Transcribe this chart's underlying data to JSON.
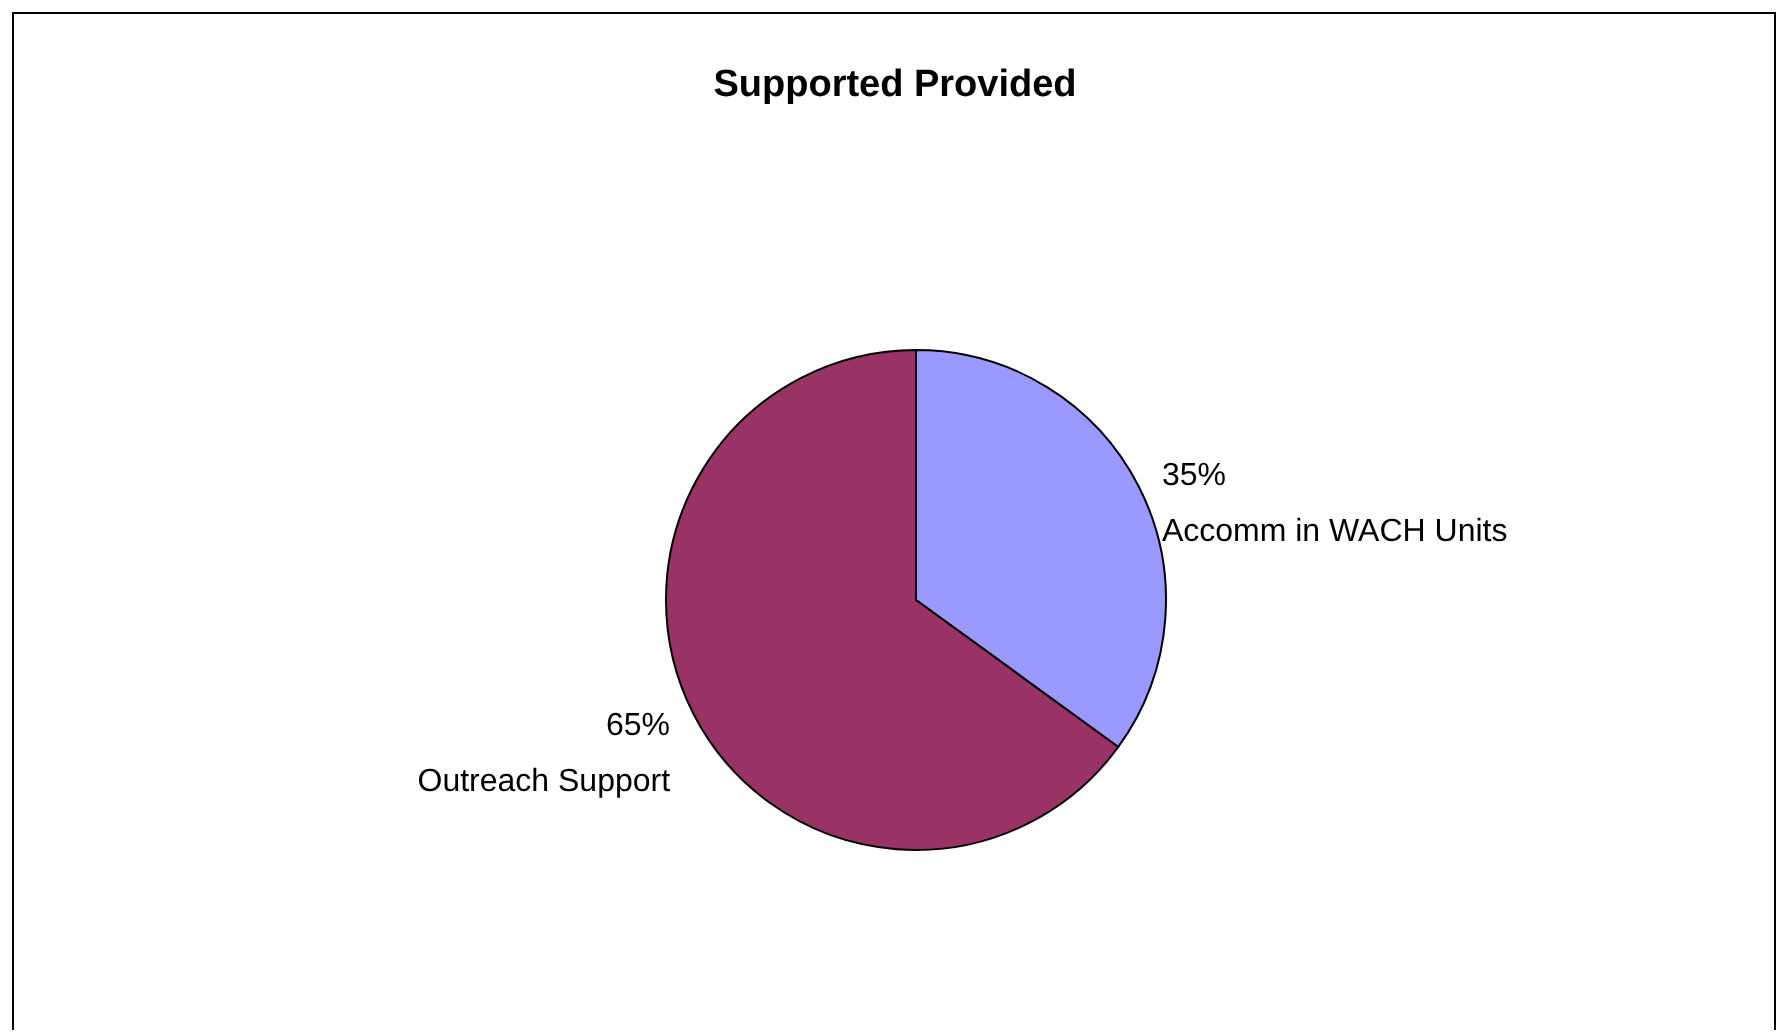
{
  "chart_data": {
    "type": "pie",
    "title": "Supported Provided",
    "categories": [
      "Accomm in WACH Units",
      "Outreach Support"
    ],
    "values": [
      35,
      65
    ],
    "value_labels": [
      "35%",
      "65%"
    ],
    "colors": [
      "#9999ff",
      "#993366"
    ]
  }
}
